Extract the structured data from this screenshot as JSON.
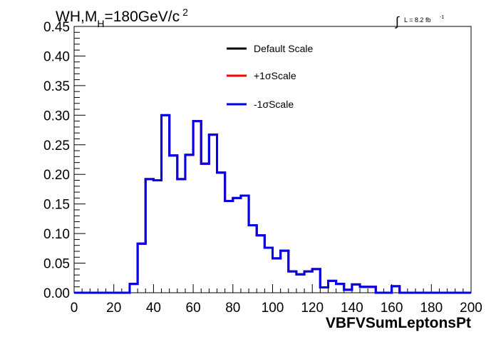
{
  "chart_data": {
    "type": "line",
    "title_parts": {
      "main": "WH,M",
      "sub": "H",
      "rest": "=180GeV/c",
      "sup": "2"
    },
    "lumi": {
      "symbol": "∫",
      "text": "L = 8.2 fb",
      "sup": "-1"
    },
    "xlabel": "VBFVSumLeptonsPt",
    "ylabel": "",
    "xlim": [
      0,
      200
    ],
    "ylim": [
      0,
      0.45
    ],
    "x_ticks": [
      0,
      20,
      40,
      60,
      80,
      100,
      120,
      140,
      160,
      180,
      200
    ],
    "x_tick_labels": [
      "0",
      "20",
      "40",
      "60",
      "80",
      "100",
      "120",
      "140",
      "160",
      "180",
      "200"
    ],
    "y_ticks": [
      0,
      0.05,
      0.1,
      0.15,
      0.2,
      0.25,
      0.3,
      0.35,
      0.4,
      0.45
    ],
    "y_tick_labels": [
      "0.00",
      "0.05",
      "0.10",
      "0.15",
      "0.20",
      "0.25",
      "0.30",
      "0.35",
      "0.40",
      "0.45"
    ],
    "grid": false,
    "legend_position": "top-center",
    "bin_edges": [
      0,
      4,
      8,
      12,
      16,
      20,
      24,
      28,
      32,
      36,
      40,
      44,
      48,
      52,
      56,
      60,
      64,
      68,
      72,
      76,
      80,
      84,
      88,
      92,
      96,
      100,
      104,
      108,
      112,
      116,
      120,
      124,
      128,
      132,
      136,
      140,
      144,
      148,
      152,
      156,
      160,
      164,
      168,
      172,
      176,
      180,
      184,
      188,
      192,
      196,
      200
    ],
    "series": [
      {
        "name": "Default Scale",
        "color": "#000000",
        "values": [
          0,
          0,
          0,
          0,
          0,
          0,
          0,
          0.015,
          0.083,
          0.192,
          0.19,
          0.3,
          0.232,
          0.192,
          0.233,
          0.29,
          0.218,
          0.267,
          0.203,
          0.155,
          0.16,
          0.164,
          0.114,
          0.097,
          0.076,
          0.058,
          0.071,
          0.036,
          0.031,
          0.036,
          0.04,
          0.009,
          0.02,
          0.015,
          0.005,
          0.014,
          0.01,
          0.01,
          0.0,
          0.0,
          0.011,
          0,
          0,
          0,
          0,
          0,
          0,
          0,
          0,
          0
        ]
      },
      {
        "name": "+1σScale",
        "color": "#ff0000",
        "values": [
          0,
          0,
          0,
          0,
          0,
          0,
          0,
          0.015,
          0.083,
          0.192,
          0.19,
          0.3,
          0.232,
          0.192,
          0.233,
          0.29,
          0.218,
          0.267,
          0.203,
          0.155,
          0.16,
          0.164,
          0.114,
          0.097,
          0.076,
          0.058,
          0.071,
          0.036,
          0.031,
          0.036,
          0.04,
          0.009,
          0.02,
          0.015,
          0.005,
          0.014,
          0.01,
          0.01,
          0.0,
          0.0,
          0.011,
          0,
          0,
          0,
          0,
          0,
          0,
          0,
          0,
          0
        ]
      },
      {
        "name": "-1σScale",
        "color": "#0000ee",
        "values": [
          0,
          0,
          0,
          0,
          0,
          0,
          0,
          0.015,
          0.083,
          0.192,
          0.19,
          0.3,
          0.232,
          0.192,
          0.233,
          0.29,
          0.218,
          0.267,
          0.203,
          0.155,
          0.16,
          0.164,
          0.114,
          0.097,
          0.076,
          0.058,
          0.071,
          0.036,
          0.031,
          0.036,
          0.04,
          0.009,
          0.02,
          0.015,
          0.005,
          0.014,
          0.01,
          0.01,
          0.0,
          0.0,
          0.011,
          0,
          0,
          0,
          0,
          0,
          0,
          0,
          0,
          0
        ]
      }
    ]
  }
}
